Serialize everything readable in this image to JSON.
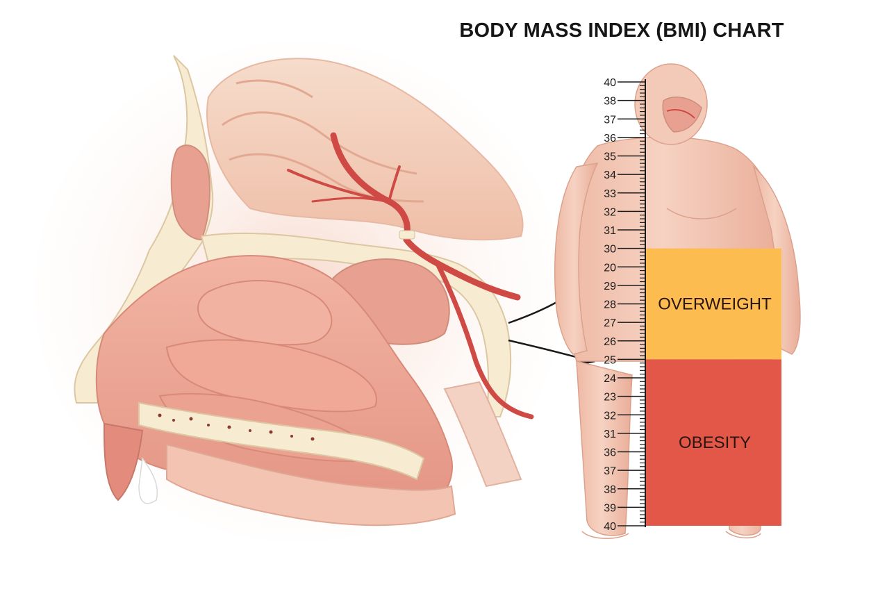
{
  "title": "BODY MASS INDEX (BMI) CHART",
  "scale": {
    "labels": [
      "40",
      "38",
      "37",
      "36",
      "35",
      "34",
      "33",
      "32",
      "31",
      "30",
      "20",
      "29",
      "28",
      "27",
      "26",
      "25",
      "24",
      "23",
      "32",
      "31",
      "36",
      "37",
      "38",
      "39",
      "40"
    ]
  },
  "bands": [
    {
      "label": "OVERWEIGHT",
      "color": "#fcbc50"
    },
    {
      "label": "OBESITY",
      "color": "#e25747"
    }
  ],
  "colors": {
    "skin": "#f1c9b5",
    "tissue": "#e9a391",
    "bone": "#f7ebd2",
    "artery": "#cf4a44",
    "arrow": "#1a1a1a"
  },
  "icons": [
    "nasal-anatomy-illustration",
    "human-figure-illustration",
    "arrow-icon"
  ]
}
